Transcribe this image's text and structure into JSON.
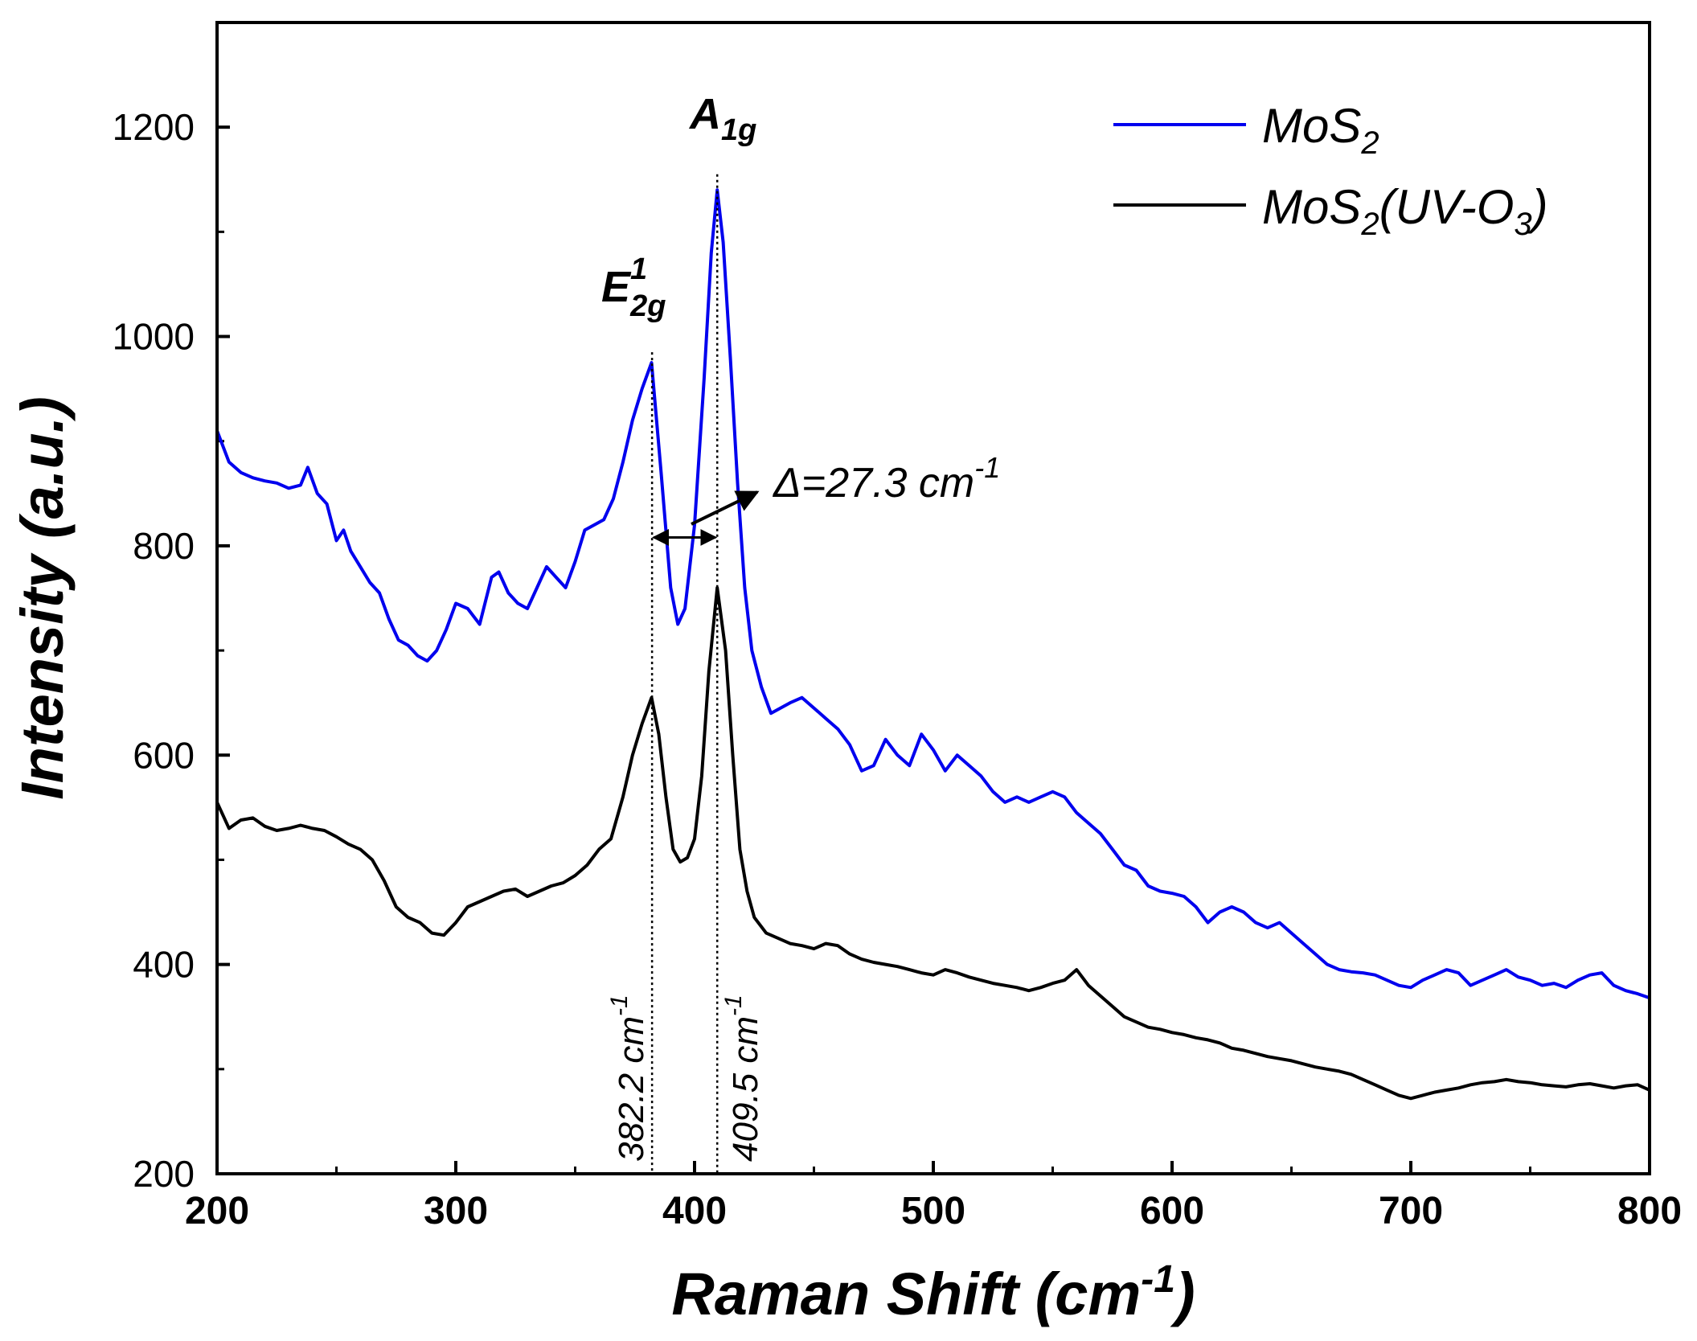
{
  "chart_data": {
    "type": "line",
    "title": "",
    "xlabel": "Raman Shift (cm",
    "xlabel_sup": "-1",
    "xlabel_close": ")",
    "ylabel": "Intensity (a.u.)",
    "xlim": [
      200,
      800
    ],
    "ylim": [
      200,
      1300
    ],
    "xticks": [
      200,
      300,
      400,
      500,
      600,
      700,
      800
    ],
    "yticks": [
      200,
      400,
      600,
      800,
      1000,
      1200
    ],
    "legend": {
      "position": "top-right",
      "entries": [
        {
          "base": "MoS",
          "sub": "2",
          "tail": "",
          "tail_sub": "",
          "tail_end": "",
          "color": "#0000ee"
        },
        {
          "base": "MoS",
          "sub": "2",
          "tail": "(UV-O",
          "tail_sub": "3",
          "tail_end": ")",
          "color": "#000000"
        }
      ]
    },
    "series": [
      {
        "name": "MoS2",
        "color": "#0000ee",
        "x": [
          200,
          205,
          210,
          215,
          220,
          225,
          230,
          235,
          238,
          242,
          246,
          250,
          253,
          256,
          260,
          264,
          268,
          272,
          276,
          280,
          284,
          288,
          292,
          296,
          300,
          305,
          310,
          315,
          318,
          322,
          326,
          330,
          334,
          338,
          342,
          346,
          350,
          354,
          358,
          362,
          366,
          370,
          374,
          378,
          382,
          386,
          390,
          393,
          396,
          400,
          404,
          407,
          409.5,
          412,
          415,
          418,
          421,
          424,
          428,
          432,
          436,
          440,
          445,
          450,
          455,
          460,
          465,
          470,
          475,
          480,
          485,
          490,
          495,
          500,
          505,
          510,
          515,
          520,
          525,
          530,
          535,
          540,
          545,
          550,
          555,
          560,
          565,
          570,
          575,
          580,
          585,
          590,
          595,
          600,
          605,
          610,
          615,
          620,
          625,
          630,
          635,
          640,
          645,
          650,
          655,
          660,
          665,
          670,
          675,
          680,
          685,
          690,
          695,
          700,
          705,
          710,
          715,
          720,
          725,
          730,
          735,
          740,
          745,
          750,
          755,
          760,
          765,
          770,
          775,
          780,
          785,
          790,
          795,
          800
        ],
        "values": [
          910,
          880,
          870,
          865,
          862,
          860,
          855,
          858,
          875,
          850,
          840,
          805,
          815,
          795,
          780,
          765,
          755,
          730,
          710,
          705,
          695,
          690,
          700,
          720,
          745,
          740,
          725,
          770,
          775,
          755,
          745,
          740,
          760,
          780,
          770,
          760,
          785,
          815,
          820,
          825,
          845,
          880,
          920,
          950,
          975,
          870,
          760,
          725,
          740,
          820,
          960,
          1080,
          1140,
          1090,
          980,
          860,
          760,
          700,
          665,
          640,
          645,
          650,
          655,
          645,
          635,
          625,
          610,
          585,
          590,
          615,
          600,
          590,
          620,
          605,
          585,
          600,
          590,
          580,
          565,
          555,
          560,
          555,
          560,
          565,
          560,
          545,
          535,
          525,
          510,
          495,
          490,
          475,
          470,
          468,
          465,
          455,
          440,
          450,
          455,
          450,
          440,
          435,
          440,
          430,
          420,
          410,
          400,
          395,
          393,
          392,
          390,
          385,
          380,
          378,
          385,
          390,
          395,
          392,
          380,
          385,
          390,
          395,
          388,
          385,
          380,
          382,
          378,
          385,
          390,
          392,
          380,
          375,
          372,
          368
        ]
      },
      {
        "name": "MoS2(UV-O3)",
        "color": "#000000",
        "x": [
          200,
          205,
          210,
          215,
          220,
          225,
          230,
          235,
          240,
          245,
          250,
          255,
          260,
          265,
          270,
          275,
          280,
          285,
          290,
          295,
          300,
          305,
          310,
          315,
          320,
          325,
          330,
          335,
          340,
          345,
          350,
          355,
          360,
          365,
          370,
          374,
          378,
          382,
          385,
          388,
          391,
          394,
          397,
          400,
          403,
          406,
          409.5,
          413,
          416,
          419,
          422,
          425,
          430,
          435,
          440,
          445,
          450,
          455,
          460,
          465,
          470,
          475,
          480,
          485,
          490,
          495,
          500,
          505,
          510,
          515,
          520,
          525,
          530,
          535,
          540,
          545,
          550,
          555,
          560,
          565,
          570,
          575,
          580,
          585,
          590,
          595,
          600,
          605,
          610,
          615,
          620,
          625,
          630,
          635,
          640,
          645,
          650,
          655,
          660,
          665,
          670,
          675,
          680,
          685,
          690,
          695,
          700,
          705,
          710,
          715,
          720,
          725,
          730,
          735,
          740,
          745,
          750,
          755,
          760,
          765,
          770,
          775,
          780,
          785,
          790,
          795,
          800
        ],
        "values": [
          555,
          530,
          538,
          540,
          532,
          528,
          530,
          533,
          530,
          528,
          522,
          515,
          510,
          500,
          480,
          455,
          445,
          440,
          430,
          428,
          440,
          455,
          460,
          465,
          470,
          472,
          465,
          470,
          475,
          478,
          485,
          495,
          510,
          520,
          560,
          600,
          630,
          655,
          620,
          560,
          510,
          498,
          502,
          520,
          580,
          680,
          760,
          700,
          600,
          510,
          470,
          445,
          430,
          425,
          420,
          418,
          415,
          420,
          418,
          410,
          405,
          402,
          400,
          398,
          395,
          392,
          390,
          395,
          392,
          388,
          385,
          382,
          380,
          378,
          375,
          378,
          382,
          385,
          395,
          380,
          370,
          360,
          350,
          345,
          340,
          338,
          335,
          333,
          330,
          328,
          325,
          320,
          318,
          315,
          312,
          310,
          308,
          305,
          302,
          300,
          298,
          295,
          290,
          285,
          280,
          275,
          272,
          275,
          278,
          280,
          282,
          285,
          287,
          288,
          290,
          288,
          287,
          285,
          284,
          283,
          285,
          286,
          284,
          282,
          284,
          285,
          280
        ]
      }
    ],
    "annotations": {
      "a1g": {
        "base": "A",
        "sub": "1g",
        "x": 409.5
      },
      "e2g": {
        "base": "E",
        "sup": "1",
        "sub": "2g",
        "x": 382.2
      },
      "vline1_text": "382.2 cm",
      "vline2_text": "409.5 cm",
      "vline_sup": "-1",
      "delta_text": "Δ=27.3 cm",
      "delta_sup": "-1"
    }
  }
}
